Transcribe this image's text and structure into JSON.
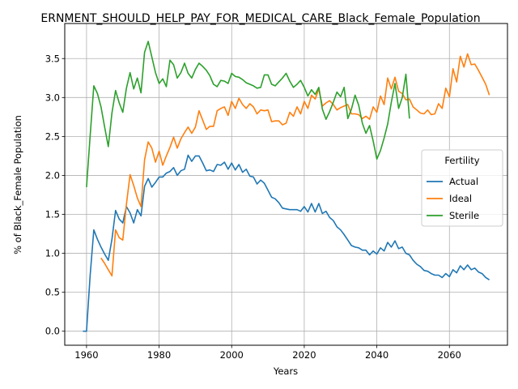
{
  "chart_data": {
    "type": "line",
    "title": "ERNMENT_SHOULD_HELP_PAY_FOR_MEDICAL_CARE_Black_Female_Population",
    "xlabel": "Years",
    "ylabel": "% of Black_Female Population",
    "xlim": [
      1954,
      2076
    ],
    "ylim": [
      -0.18,
      3.95
    ],
    "xticks": [
      1960,
      1980,
      2000,
      2020,
      2040,
      2060
    ],
    "yticks": [
      0.0,
      0.5,
      1.0,
      1.5,
      2.0,
      2.5,
      3.0,
      3.5
    ],
    "xtick_labels": [
      "1960",
      "1980",
      "2000",
      "2020",
      "2040",
      "2060"
    ],
    "ytick_labels": [
      "0.0",
      "0.5",
      "1.0",
      "1.5",
      "2.0",
      "2.5",
      "3.0",
      "3.5"
    ],
    "grid": true,
    "legend": {
      "title": "Fertility",
      "placement": "center-right"
    },
    "series": [
      {
        "name": "Actual",
        "color": "#1f77b4",
        "points": [
          [
            1959,
            0.0
          ],
          [
            1960,
            0.0
          ],
          [
            1961,
            0.72
          ],
          [
            1962,
            1.3
          ],
          [
            1963,
            1.18
          ],
          [
            1964,
            1.08
          ],
          [
            1965,
            0.99
          ],
          [
            1966,
            0.91
          ],
          [
            1967,
            1.18
          ],
          [
            1968,
            1.55
          ],
          [
            1969,
            1.44
          ],
          [
            1970,
            1.39
          ],
          [
            1971,
            1.6
          ],
          [
            1972,
            1.52
          ],
          [
            1973,
            1.39
          ],
          [
            1974,
            1.56
          ],
          [
            1975,
            1.48
          ],
          [
            1976,
            1.86
          ],
          [
            1977,
            1.96
          ],
          [
            1978,
            1.85
          ],
          [
            1979,
            1.91
          ],
          [
            1980,
            1.98
          ],
          [
            1981,
            1.98
          ],
          [
            1982,
            2.03
          ],
          [
            1983,
            2.05
          ],
          [
            1984,
            2.1
          ],
          [
            1985,
            2.0
          ],
          [
            1986,
            2.06
          ],
          [
            1987,
            2.08
          ],
          [
            1988,
            2.26
          ],
          [
            1989,
            2.18
          ],
          [
            1990,
            2.25
          ],
          [
            1991,
            2.25
          ],
          [
            1992,
            2.16
          ],
          [
            1993,
            2.06
          ],
          [
            1994,
            2.07
          ],
          [
            1995,
            2.05
          ],
          [
            1996,
            2.14
          ],
          [
            1997,
            2.13
          ],
          [
            1998,
            2.17
          ],
          [
            1999,
            2.08
          ],
          [
            2000,
            2.16
          ],
          [
            2001,
            2.07
          ],
          [
            2002,
            2.14
          ],
          [
            2003,
            2.04
          ],
          [
            2004,
            2.08
          ],
          [
            2005,
            1.99
          ],
          [
            2006,
            1.98
          ],
          [
            2007,
            1.89
          ],
          [
            2008,
            1.94
          ],
          [
            2009,
            1.9
          ],
          [
            2010,
            1.81
          ],
          [
            2011,
            1.72
          ],
          [
            2012,
            1.7
          ],
          [
            2013,
            1.65
          ],
          [
            2014,
            1.58
          ],
          [
            2015,
            1.57
          ],
          [
            2016,
            1.56
          ],
          [
            2017,
            1.56
          ],
          [
            2018,
            1.56
          ],
          [
            2019,
            1.54
          ],
          [
            2020,
            1.6
          ],
          [
            2021,
            1.53
          ],
          [
            2022,
            1.64
          ],
          [
            2023,
            1.53
          ],
          [
            2024,
            1.64
          ],
          [
            2025,
            1.51
          ],
          [
            2026,
            1.54
          ],
          [
            2027,
            1.46
          ],
          [
            2028,
            1.42
          ],
          [
            2029,
            1.34
          ],
          [
            2030,
            1.3
          ],
          [
            2031,
            1.24
          ],
          [
            2032,
            1.17
          ],
          [
            2033,
            1.1
          ],
          [
            2034,
            1.08
          ],
          [
            2035,
            1.07
          ],
          [
            2036,
            1.04
          ],
          [
            2037,
            1.04
          ],
          [
            2038,
            0.98
          ],
          [
            2039,
            1.03
          ],
          [
            2040,
            0.99
          ],
          [
            2041,
            1.07
          ],
          [
            2042,
            1.03
          ],
          [
            2043,
            1.14
          ],
          [
            2044,
            1.08
          ],
          [
            2045,
            1.16
          ],
          [
            2046,
            1.06
          ],
          [
            2047,
            1.08
          ],
          [
            2048,
            1.0
          ],
          [
            2049,
            0.98
          ],
          [
            2050,
            0.91
          ],
          [
            2051,
            0.86
          ],
          [
            2052,
            0.83
          ],
          [
            2053,
            0.78
          ],
          [
            2054,
            0.77
          ],
          [
            2055,
            0.74
          ],
          [
            2056,
            0.72
          ],
          [
            2057,
            0.72
          ],
          [
            2058,
            0.69
          ],
          [
            2059,
            0.74
          ],
          [
            2060,
            0.7
          ],
          [
            2061,
            0.79
          ],
          [
            2062,
            0.75
          ],
          [
            2063,
            0.84
          ],
          [
            2064,
            0.79
          ],
          [
            2065,
            0.85
          ],
          [
            2066,
            0.79
          ],
          [
            2067,
            0.81
          ],
          [
            2068,
            0.76
          ],
          [
            2069,
            0.74
          ],
          [
            2070,
            0.69
          ],
          [
            2071,
            0.66
          ]
        ]
      },
      {
        "name": "Ideal",
        "color": "#ff7f0e",
        "points": [
          [
            1964,
            0.94
          ],
          [
            1965,
            0.87
          ],
          [
            1966,
            0.79
          ],
          [
            1967,
            0.71
          ],
          [
            1968,
            1.3
          ],
          [
            1969,
            1.2
          ],
          [
            1970,
            1.17
          ],
          [
            1971,
            1.63
          ],
          [
            1972,
            2.01
          ],
          [
            1973,
            1.87
          ],
          [
            1974,
            1.71
          ],
          [
            1975,
            1.6
          ],
          [
            1976,
            2.2
          ],
          [
            1977,
            2.43
          ],
          [
            1978,
            2.35
          ],
          [
            1979,
            2.17
          ],
          [
            1980,
            2.31
          ],
          [
            1981,
            2.13
          ],
          [
            1982,
            2.25
          ],
          [
            1983,
            2.36
          ],
          [
            1984,
            2.49
          ],
          [
            1985,
            2.35
          ],
          [
            1986,
            2.47
          ],
          [
            1987,
            2.55
          ],
          [
            1988,
            2.62
          ],
          [
            1989,
            2.54
          ],
          [
            1990,
            2.62
          ],
          [
            1991,
            2.83
          ],
          [
            1992,
            2.71
          ],
          [
            1993,
            2.59
          ],
          [
            1994,
            2.63
          ],
          [
            1995,
            2.63
          ],
          [
            1996,
            2.83
          ],
          [
            1997,
            2.86
          ],
          [
            1998,
            2.88
          ],
          [
            1999,
            2.77
          ],
          [
            2000,
            2.95
          ],
          [
            2001,
            2.86
          ],
          [
            2002,
            2.99
          ],
          [
            2003,
            2.91
          ],
          [
            2004,
            2.86
          ],
          [
            2005,
            2.92
          ],
          [
            2006,
            2.88
          ],
          [
            2007,
            2.79
          ],
          [
            2008,
            2.84
          ],
          [
            2009,
            2.83
          ],
          [
            2010,
            2.84
          ],
          [
            2011,
            2.69
          ],
          [
            2012,
            2.7
          ],
          [
            2013,
            2.7
          ],
          [
            2014,
            2.65
          ],
          [
            2015,
            2.67
          ],
          [
            2016,
            2.81
          ],
          [
            2017,
            2.76
          ],
          [
            2018,
            2.88
          ],
          [
            2019,
            2.79
          ],
          [
            2020,
            2.95
          ],
          [
            2021,
            2.86
          ],
          [
            2022,
            3.03
          ],
          [
            2023,
            2.98
          ],
          [
            2024,
            3.11
          ],
          [
            2025,
            2.89
          ],
          [
            2026,
            2.93
          ],
          [
            2027,
            2.96
          ],
          [
            2028,
            2.91
          ],
          [
            2029,
            2.84
          ],
          [
            2030,
            2.87
          ],
          [
            2031,
            2.89
          ],
          [
            2032,
            2.91
          ],
          [
            2033,
            2.79
          ],
          [
            2034,
            2.79
          ],
          [
            2035,
            2.78
          ],
          [
            2036,
            2.73
          ],
          [
            2037,
            2.76
          ],
          [
            2038,
            2.72
          ],
          [
            2039,
            2.88
          ],
          [
            2040,
            2.81
          ],
          [
            2041,
            3.02
          ],
          [
            2042,
            2.91
          ],
          [
            2043,
            3.25
          ],
          [
            2044,
            3.11
          ],
          [
            2045,
            3.26
          ],
          [
            2046,
            3.08
          ],
          [
            2047,
            3.05
          ],
          [
            2048,
            2.97
          ],
          [
            2049,
            2.98
          ],
          [
            2050,
            2.88
          ],
          [
            2051,
            2.84
          ],
          [
            2052,
            2.8
          ],
          [
            2053,
            2.79
          ],
          [
            2054,
            2.84
          ],
          [
            2055,
            2.78
          ],
          [
            2056,
            2.79
          ],
          [
            2057,
            2.92
          ],
          [
            2058,
            2.86
          ],
          [
            2059,
            3.12
          ],
          [
            2060,
            3.01
          ],
          [
            2061,
            3.37
          ],
          [
            2062,
            3.2
          ],
          [
            2063,
            3.53
          ],
          [
            2064,
            3.39
          ],
          [
            2065,
            3.56
          ],
          [
            2066,
            3.42
          ],
          [
            2067,
            3.43
          ],
          [
            2068,
            3.35
          ],
          [
            2069,
            3.26
          ],
          [
            2070,
            3.17
          ],
          [
            2071,
            3.03
          ]
        ]
      },
      {
        "name": "Sterile",
        "color": "#2ca02c",
        "points": [
          [
            1960,
            1.85
          ],
          [
            1961,
            2.51
          ],
          [
            1962,
            3.15
          ],
          [
            1963,
            3.05
          ],
          [
            1964,
            2.88
          ],
          [
            1965,
            2.62
          ],
          [
            1966,
            2.37
          ],
          [
            1967,
            2.8
          ],
          [
            1968,
            3.09
          ],
          [
            1969,
            2.93
          ],
          [
            1970,
            2.81
          ],
          [
            1971,
            3.12
          ],
          [
            1972,
            3.32
          ],
          [
            1973,
            3.11
          ],
          [
            1974,
            3.25
          ],
          [
            1975,
            3.06
          ],
          [
            1976,
            3.58
          ],
          [
            1977,
            3.72
          ],
          [
            1978,
            3.52
          ],
          [
            1979,
            3.32
          ],
          [
            1980,
            3.18
          ],
          [
            1981,
            3.24
          ],
          [
            1982,
            3.14
          ],
          [
            1983,
            3.48
          ],
          [
            1984,
            3.42
          ],
          [
            1985,
            3.25
          ],
          [
            1986,
            3.32
          ],
          [
            1987,
            3.44
          ],
          [
            1988,
            3.31
          ],
          [
            1989,
            3.25
          ],
          [
            1990,
            3.36
          ],
          [
            1991,
            3.44
          ],
          [
            1992,
            3.4
          ],
          [
            1993,
            3.35
          ],
          [
            1994,
            3.28
          ],
          [
            1995,
            3.17
          ],
          [
            1996,
            3.14
          ],
          [
            1997,
            3.22
          ],
          [
            1998,
            3.21
          ],
          [
            1999,
            3.18
          ],
          [
            2000,
            3.31
          ],
          [
            2001,
            3.27
          ],
          [
            2002,
            3.26
          ],
          [
            2003,
            3.23
          ],
          [
            2004,
            3.19
          ],
          [
            2005,
            3.17
          ],
          [
            2006,
            3.15
          ],
          [
            2007,
            3.12
          ],
          [
            2008,
            3.13
          ],
          [
            2009,
            3.29
          ],
          [
            2010,
            3.29
          ],
          [
            2011,
            3.17
          ],
          [
            2012,
            3.15
          ],
          [
            2013,
            3.2
          ],
          [
            2014,
            3.25
          ],
          [
            2015,
            3.31
          ],
          [
            2016,
            3.21
          ],
          [
            2017,
            3.13
          ],
          [
            2018,
            3.17
          ],
          [
            2019,
            3.22
          ],
          [
            2020,
            3.13
          ],
          [
            2021,
            3.02
          ],
          [
            2022,
            3.1
          ],
          [
            2023,
            3.04
          ],
          [
            2024,
            3.13
          ],
          [
            2025,
            2.85
          ],
          [
            2026,
            2.72
          ],
          [
            2027,
            2.82
          ],
          [
            2028,
            2.94
          ],
          [
            2029,
            3.07
          ],
          [
            2030,
            3.01
          ],
          [
            2031,
            3.13
          ],
          [
            2032,
            2.73
          ],
          [
            2033,
            2.85
          ],
          [
            2034,
            3.03
          ],
          [
            2035,
            2.9
          ],
          [
            2036,
            2.67
          ],
          [
            2037,
            2.54
          ],
          [
            2038,
            2.64
          ],
          [
            2039,
            2.44
          ],
          [
            2040,
            2.21
          ],
          [
            2041,
            2.32
          ],
          [
            2042,
            2.48
          ],
          [
            2043,
            2.66
          ],
          [
            2044,
            2.94
          ],
          [
            2045,
            3.18
          ],
          [
            2046,
            2.86
          ],
          [
            2047,
            3.0
          ],
          [
            2048,
            3.3
          ],
          [
            2049,
            2.73
          ]
        ]
      }
    ]
  }
}
